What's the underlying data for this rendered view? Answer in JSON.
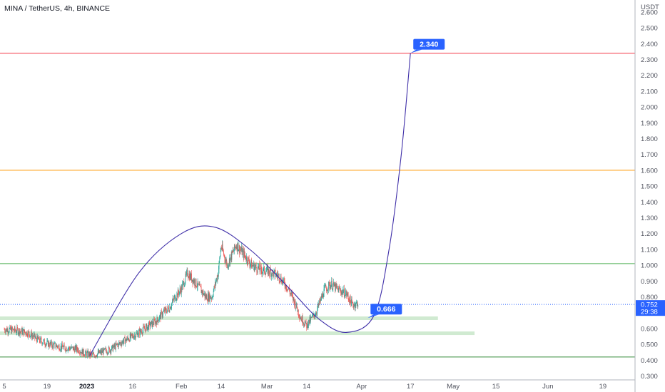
{
  "header": {
    "title": "MINA / TetherUS, 4h, BINANCE",
    "currency": "USDT"
  },
  "chart_data": {
    "type": "candlestick",
    "symbol": "MINA / TetherUS",
    "interval": "4h",
    "exchange": "BINANCE",
    "y_axis": {
      "unit": "USDT",
      "ticks": [
        "0.300",
        "0.400",
        "0.500",
        "0.600",
        "0.700",
        "0.800",
        "0.900",
        "1.000",
        "1.100",
        "1.200",
        "1.300",
        "1.400",
        "1.500",
        "1.600",
        "1.700",
        "1.800",
        "1.900",
        "2.000",
        "2.100",
        "2.200",
        "2.300",
        "2.400",
        "2.500",
        "2.600"
      ],
      "range": [
        0.28,
        2.64
      ]
    },
    "x_axis": {
      "ticks": [
        "5",
        "19",
        "2023",
        "16",
        "Feb",
        "14",
        "Mar",
        "14",
        "Apr",
        "17",
        "May",
        "15",
        "Jun",
        "19"
      ],
      "range_days": [
        "2022-12-05",
        "2023-06-30"
      ]
    },
    "last_price": {
      "value": "0.752",
      "countdown": "29:38"
    },
    "horizontal_lines": [
      {
        "price": 2.34,
        "color": "#f23645"
      },
      {
        "price": 1.6,
        "color": "#ff9800"
      },
      {
        "price": 1.01,
        "color": "#4caf50"
      },
      {
        "price": 0.42,
        "color": "#388e3c"
      }
    ],
    "zones": [
      {
        "price": 0.665,
        "from": "2022-12-05",
        "to": "2023-04-26",
        "color": "#c8e6c9"
      },
      {
        "price": 0.57,
        "from": "2022-12-05",
        "to": "2023-05-08",
        "color": "#c8e6c9"
      }
    ],
    "callouts": [
      {
        "label": "2.340",
        "price": 2.34,
        "date": "2023-04-17"
      },
      {
        "label": "0.666",
        "price": 0.666,
        "date": "2023-04-03"
      }
    ],
    "price_path": [
      [
        "2022-12-05",
        0.595
      ],
      [
        "2022-12-10",
        0.585
      ],
      [
        "2022-12-13",
        0.57
      ],
      [
        "2022-12-16",
        0.53
      ],
      [
        "2022-12-19",
        0.505
      ],
      [
        "2022-12-24",
        0.48
      ],
      [
        "2022-12-29",
        0.47
      ],
      [
        "2022-12-31",
        0.445
      ],
      [
        "2023-01-03",
        0.43
      ],
      [
        "2023-01-05",
        0.445
      ],
      [
        "2023-01-09",
        0.47
      ],
      [
        "2023-01-13",
        0.52
      ],
      [
        "2023-01-17",
        0.56
      ],
      [
        "2023-01-20",
        0.6
      ],
      [
        "2023-01-24",
        0.65
      ],
      [
        "2023-01-26",
        0.7
      ],
      [
        "2023-01-28",
        0.73
      ],
      [
        "2023-01-30",
        0.8
      ],
      [
        "2023-02-01",
        0.85
      ],
      [
        "2023-02-03",
        0.95
      ],
      [
        "2023-02-06",
        0.88
      ],
      [
        "2023-02-09",
        0.8
      ],
      [
        "2023-02-11",
        0.8
      ],
      [
        "2023-02-13",
        0.95
      ],
      [
        "2023-02-14",
        1.12
      ],
      [
        "2023-02-16",
        1.0
      ],
      [
        "2023-02-19",
        1.13
      ],
      [
        "2023-02-21",
        1.08
      ],
      [
        "2023-02-24",
        1.0
      ],
      [
        "2023-02-27",
        0.97
      ],
      [
        "2023-03-02",
        0.96
      ],
      [
        "2023-03-05",
        0.93
      ],
      [
        "2023-03-08",
        0.85
      ],
      [
        "2023-03-10",
        0.77
      ],
      [
        "2023-03-12",
        0.67
      ],
      [
        "2023-03-14",
        0.62
      ],
      [
        "2023-03-17",
        0.7
      ],
      [
        "2023-03-20",
        0.85
      ],
      [
        "2023-03-22",
        0.88
      ],
      [
        "2023-03-24",
        0.85
      ],
      [
        "2023-03-27",
        0.82
      ],
      [
        "2023-03-29",
        0.75
      ],
      [
        "2023-03-31",
        0.76
      ]
    ],
    "projection_curve": [
      [
        "2023-01-02",
        0.43
      ],
      [
        "2023-01-18",
        0.95
      ],
      [
        "2023-02-01",
        1.2
      ],
      [
        "2023-02-12",
        1.24
      ],
      [
        "2023-02-24",
        1.09
      ],
      [
        "2023-03-08",
        0.86
      ],
      [
        "2023-03-18",
        0.66
      ],
      [
        "2023-03-27",
        0.575
      ],
      [
        "2023-04-05",
        0.68
      ],
      [
        "2023-04-10",
        1.1
      ],
      [
        "2023-04-14",
        1.7
      ],
      [
        "2023-04-17",
        2.34
      ]
    ]
  }
}
